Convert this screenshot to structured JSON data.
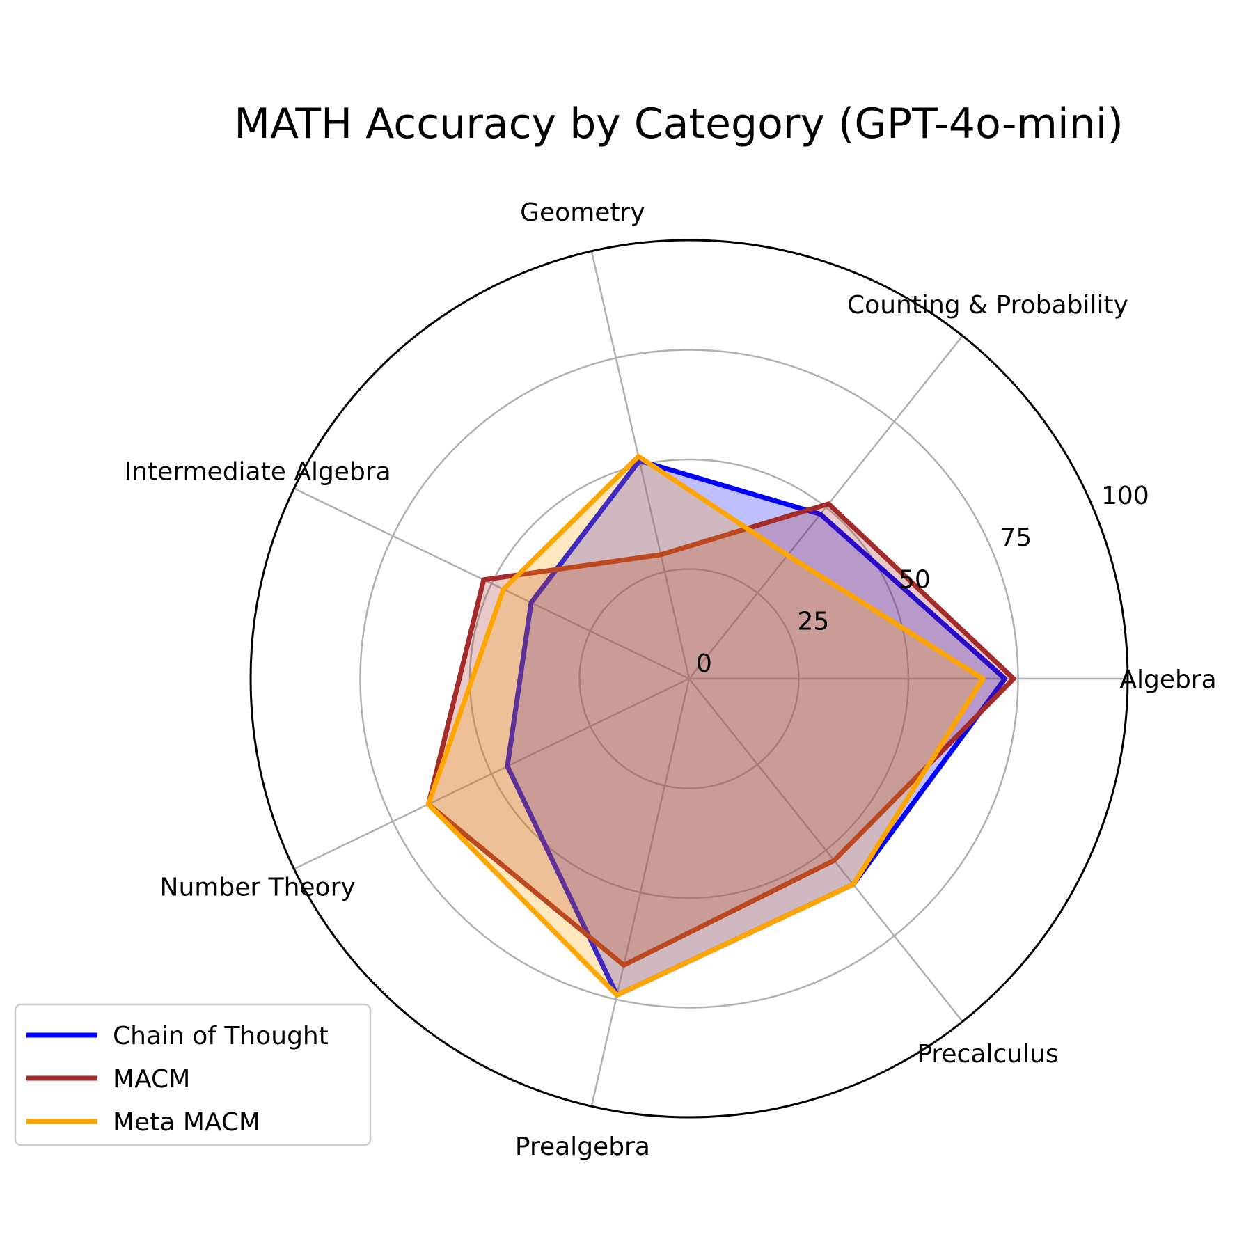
{
  "chart_data": {
    "type": "radar",
    "title": "MATH Accuracy by Category (GPT-4o-mini)",
    "categories": [
      "Algebra",
      "Counting & Probability",
      "Geometry",
      "Intermediate Algebra",
      "Number Theory",
      "Prealgebra",
      "Precalculus"
    ],
    "rlim": [
      0,
      100
    ],
    "rticks": [
      0,
      25,
      50,
      75,
      100
    ],
    "grid": true,
    "legend_position": "lower-left",
    "series": [
      {
        "name": "Chain of Thought",
        "color": "#0000ff",
        "values": [
          72,
          48,
          51,
          40,
          46,
          74,
          60
        ]
      },
      {
        "name": "MACM",
        "color": "#a52a2a",
        "values": [
          74,
          51,
          29,
          52,
          66,
          67,
          53
        ]
      },
      {
        "name": "Meta MACM",
        "color": "#ffa500",
        "values": [
          67,
          36,
          52,
          47,
          66,
          74,
          60
        ]
      }
    ]
  }
}
